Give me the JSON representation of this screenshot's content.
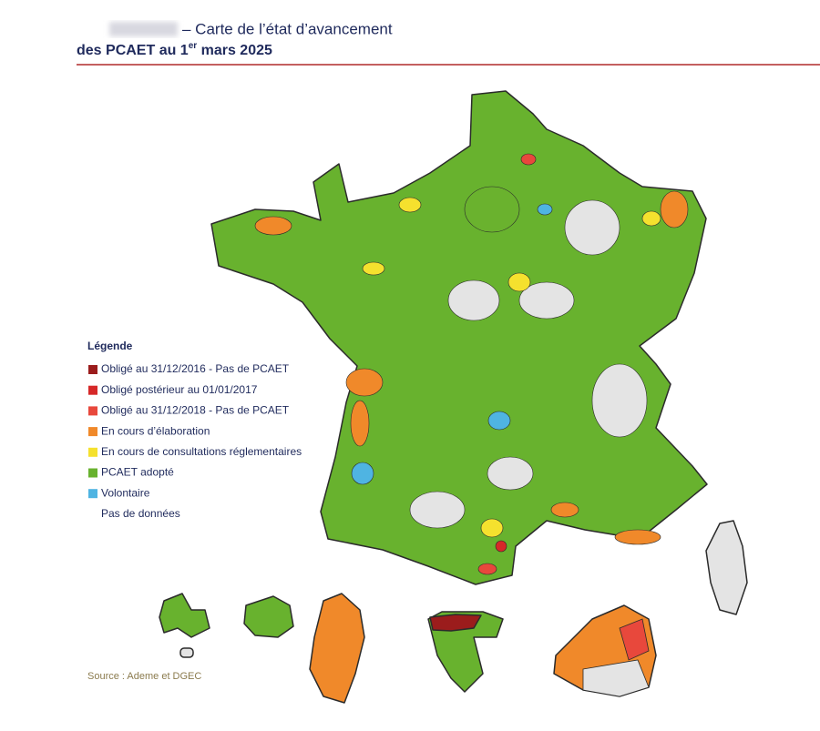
{
  "header": {
    "title_line1": "– Carte de l’état d’avancement",
    "title_line2": {
      "before": "des PCAET au 1",
      "sup": "er",
      "after": " mars 2025"
    }
  },
  "legend": {
    "title": "Légende",
    "items": [
      {
        "name": "Obligé au 31/12/2016 - Pas de PCAET",
        "color": "#9b1c1c"
      },
      {
        "name": "Obligé postérieur au 01/01/2017",
        "color": "#d62828"
      },
      {
        "name": "Obligé au 31/12/2018 - Pas de PCAET",
        "color": "#e8483c"
      },
      {
        "name": "En cours d’élaboration",
        "color": "#f0892a"
      },
      {
        "name": "En cours de consultations réglementaires",
        "color": "#f5e12e"
      },
      {
        "name": "PCAET adopté",
        "color": "#68b22e"
      },
      {
        "name": "Volontaire",
        "color": "#4fb4e2"
      },
      {
        "name": "Pas de données",
        "color": "#ffffff"
      }
    ]
  },
  "source": "Source : Ademe et DGEC"
}
